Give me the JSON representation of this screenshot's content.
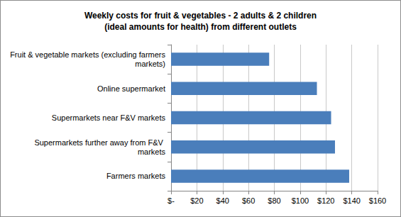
{
  "chart_data": {
    "type": "bar",
    "orientation": "horizontal",
    "title": "Weekly costs for fruit & vegetables - 2 adults & 2 children\n(ideal amounts for health) from different outlets",
    "categories": [
      "Fruit & vegetable markets (excluding farmers markets)",
      "Online supermarket",
      "Supermarkets near F&V markets",
      "Supermarkets further away from F&V markets",
      "Farmers markets"
    ],
    "values": [
      76,
      113,
      124,
      127,
      138
    ],
    "color": "#4a7ebb",
    "xlim": [
      0,
      160
    ],
    "xticks": [
      {
        "value": 0,
        "label": "$-"
      },
      {
        "value": 20,
        "label": "$20"
      },
      {
        "value": 40,
        "label": "$40"
      },
      {
        "value": 60,
        "label": "$60"
      },
      {
        "value": 80,
        "label": "$80"
      },
      {
        "value": 100,
        "label": "$100"
      },
      {
        "value": 120,
        "label": "$120"
      },
      {
        "value": 140,
        "label": "$140"
      },
      {
        "value": 160,
        "label": "$160"
      }
    ],
    "grid": true
  }
}
